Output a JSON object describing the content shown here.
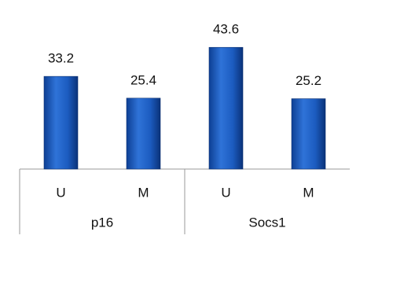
{
  "chart_data": {
    "type": "bar",
    "color": "#1c5cc0",
    "groups": [
      {
        "name": "p16",
        "categories": [
          "U",
          "M"
        ],
        "values": [
          33.2,
          25.4
        ]
      },
      {
        "name": "Socs1",
        "categories": [
          "U",
          "M"
        ],
        "values": [
          43.6,
          25.2
        ]
      }
    ]
  }
}
